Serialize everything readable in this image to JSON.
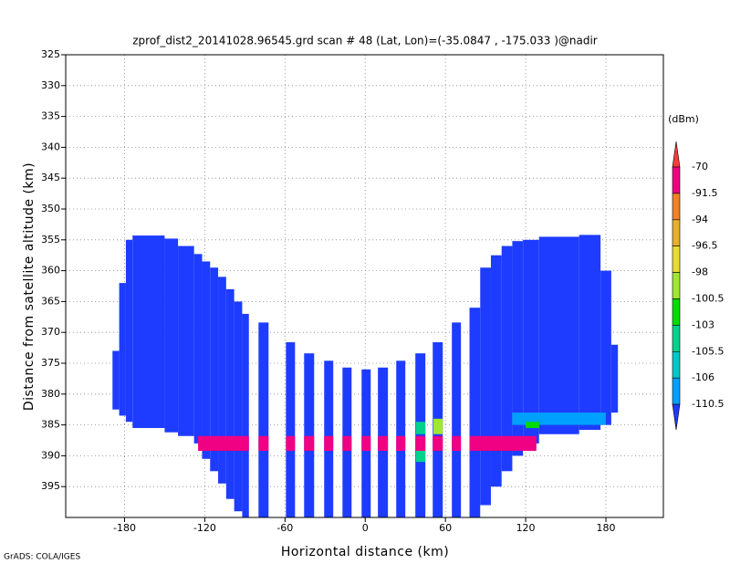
{
  "chart_data": {
    "type": "field",
    "title": "zprof_dist2_20141028.96545.grd  scan # 48  (Lat, Lon)=(-35.0847 , -175.033 )@nadir",
    "x_label": "Horizontal distance (km)",
    "y_label": "Distance from satellite altitude (km)",
    "footnote": "GrADS: COLA/IGES",
    "xlim": [
      -224,
      223
    ],
    "ylim": [
      325,
      400
    ],
    "y_reversed": true,
    "xticks": [
      -180,
      -120,
      -60,
      0,
      60,
      120,
      180
    ],
    "yticks": [
      325,
      330,
      335,
      340,
      345,
      350,
      355,
      360,
      365,
      370,
      375,
      380,
      385,
      390,
      395
    ],
    "grid": true,
    "colorbar": {
      "title": "(dBm)",
      "levels": [
        -70,
        -91.5,
        -94,
        -96.5,
        -98,
        -100.5,
        -103,
        -105.5,
        -106,
        -110.5
      ],
      "colors": [
        "#fa3c3c",
        "#f00082",
        "#f08228",
        "#e6af2d",
        "#e6dc32",
        "#a0e632",
        "#00dc00",
        "#00d28c",
        "#00c8c8",
        "#00a0ff",
        "#1e3cff"
      ]
    },
    "strips": [
      {
        "x0": -189,
        "x1": -184,
        "top": 373,
        "bottom": 382.5,
        "value": -112
      },
      {
        "x0": -184,
        "x1": -179,
        "top": 362,
        "bottom": 383.5,
        "value": -112
      },
      {
        "x0": -179,
        "x1": -174,
        "top": 355,
        "bottom": 384.5,
        "value": -112
      },
      {
        "x0": -174,
        "x1": -150,
        "top": 354.3,
        "bottom": 385.5,
        "value": -112
      },
      {
        "x0": -150,
        "x1": -140,
        "top": 354.8,
        "bottom": 386.2,
        "value": -112
      },
      {
        "x0": -140,
        "x1": -128,
        "top": 356,
        "bottom": 386.8,
        "value": -112
      },
      {
        "x0": -128,
        "x1": -122,
        "top": 357.3,
        "bottom": 388,
        "value": -112
      },
      {
        "x0": -122,
        "x1": -116,
        "top": 358.5,
        "bottom": 390.5,
        "value": -112
      },
      {
        "x0": -116,
        "x1": -110,
        "top": 359.5,
        "bottom": 392.5,
        "value": -112
      },
      {
        "x0": -110,
        "x1": -104,
        "top": 361,
        "bottom": 394.5,
        "value": -112
      },
      {
        "x0": -104,
        "x1": -98,
        "top": 363,
        "bottom": 397,
        "value": -112
      },
      {
        "x0": -98,
        "x1": -92,
        "top": 365,
        "bottom": 399,
        "value": -112
      },
      {
        "x0": -92,
        "x1": -87,
        "top": 367,
        "bottom": 400,
        "value": -112
      },
      {
        "x0": -79.8,
        "x1": -72.3,
        "top": 368.4,
        "bottom": 400,
        "value": -112
      },
      {
        "x0": -59.3,
        "x1": -52.5,
        "top": 371.6,
        "bottom": 400,
        "value": -112
      },
      {
        "x0": -45.7,
        "x1": -38.2,
        "top": 373.4,
        "bottom": 400,
        "value": -112
      },
      {
        "x0": -30.7,
        "x1": -23.9,
        "top": 374.6,
        "bottom": 400,
        "value": -112
      },
      {
        "x0": -17,
        "x1": -10.2,
        "top": 375.7,
        "bottom": 400,
        "value": -112
      },
      {
        "x0": -2.7,
        "x1": 4.1,
        "top": 376,
        "bottom": 400,
        "value": -112
      },
      {
        "x0": 9.5,
        "x1": 17,
        "top": 375.7,
        "bottom": 400,
        "value": -112
      },
      {
        "x0": 23.2,
        "x1": 30,
        "top": 374.6,
        "bottom": 400,
        "value": -112
      },
      {
        "x0": 37.5,
        "x1": 45,
        "top": 373.4,
        "bottom": 400,
        "value": -112
      },
      {
        "x0": 50.5,
        "x1": 58,
        "top": 371.6,
        "bottom": 400,
        "value": -112
      },
      {
        "x0": 64.8,
        "x1": 71.6,
        "top": 368.4,
        "bottom": 400,
        "value": -112
      },
      {
        "x0": 78,
        "x1": 86,
        "top": 366,
        "bottom": 400,
        "value": -112
      },
      {
        "x0": 86,
        "x1": 94,
        "top": 359.5,
        "bottom": 398,
        "value": -112
      },
      {
        "x0": 94,
        "x1": 102,
        "top": 357.5,
        "bottom": 395,
        "value": -112
      },
      {
        "x0": 102,
        "x1": 110,
        "top": 356,
        "bottom": 392.5,
        "value": -112
      },
      {
        "x0": 110,
        "x1": 118,
        "top": 355.2,
        "bottom": 390,
        "value": -112
      },
      {
        "x0": 118,
        "x1": 130,
        "top": 355,
        "bottom": 388,
        "value": -112
      },
      {
        "x0": 130,
        "x1": 160,
        "top": 354.5,
        "bottom": 386.5,
        "value": -112
      },
      {
        "x0": 160,
        "x1": 176,
        "top": 354.2,
        "bottom": 385.8,
        "value": -112
      },
      {
        "x0": 176,
        "x1": 184,
        "top": 360,
        "bottom": 385,
        "value": -112
      },
      {
        "x0": 184,
        "x1": 189,
        "top": 372,
        "bottom": 383,
        "value": -112
      }
    ],
    "echoes": [
      {
        "x0": -125,
        "x1": -87,
        "top": 386.8,
        "bottom": 389.2,
        "value": -85
      },
      {
        "x0": -79.8,
        "x1": -72.3,
        "top": 386.8,
        "bottom": 389.2,
        "value": -85
      },
      {
        "x0": -59.3,
        "x1": -52.5,
        "top": 386.8,
        "bottom": 389.2,
        "value": -85
      },
      {
        "x0": -45.7,
        "x1": -38.2,
        "top": 386.8,
        "bottom": 389.2,
        "value": -85
      },
      {
        "x0": -30.7,
        "x1": -23.9,
        "top": 386.8,
        "bottom": 389.2,
        "value": -85
      },
      {
        "x0": -17,
        "x1": -10.2,
        "top": 386.8,
        "bottom": 389.2,
        "value": -85
      },
      {
        "x0": -2.7,
        "x1": 4.1,
        "top": 386.8,
        "bottom": 389.2,
        "value": -85
      },
      {
        "x0": 9.5,
        "x1": 17,
        "top": 386.8,
        "bottom": 389.2,
        "value": -85
      },
      {
        "x0": 23.2,
        "x1": 30,
        "top": 386.8,
        "bottom": 389.2,
        "value": -85
      },
      {
        "x0": 37.5,
        "x1": 45,
        "top": 386.8,
        "bottom": 389.2,
        "value": -85
      },
      {
        "x0": 50.5,
        "x1": 58,
        "top": 386.8,
        "bottom": 389.2,
        "value": -85
      },
      {
        "x0": 64.8,
        "x1": 71.6,
        "top": 386.8,
        "bottom": 389.2,
        "value": -85
      },
      {
        "x0": 78,
        "x1": 128,
        "top": 386.8,
        "bottom": 389.2,
        "value": -85
      },
      {
        "x0": 38,
        "x1": 45,
        "top": 384.5,
        "bottom": 386.5,
        "value": -104
      },
      {
        "x0": 38,
        "x1": 45,
        "top": 389.2,
        "bottom": 391,
        "value": -104
      },
      {
        "x0": 51,
        "x1": 58,
        "top": 384,
        "bottom": 386.5,
        "value": -99
      },
      {
        "x0": 110,
        "x1": 180,
        "top": 383,
        "bottom": 385,
        "value": -107
      },
      {
        "x0": 120,
        "x1": 130,
        "top": 384.5,
        "bottom": 385.5,
        "value": -101
      }
    ]
  }
}
